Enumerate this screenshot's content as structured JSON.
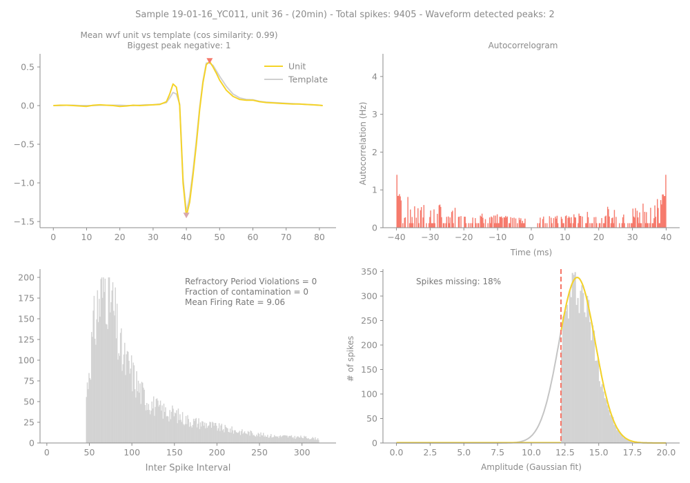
{
  "suptitle": "Sample 19-01-16_YC011, unit 36 - (20min) - Total spikes: 9405 - Waveform detected peaks: 2",
  "colors": {
    "unit": "#f5d327",
    "template": "#cfcfcf",
    "acg": "#f6796b",
    "hist": "#d3d3d3",
    "axis": "#8a8a8a",
    "peak_pos": "#f6796b",
    "peak_neg": "#d6a7ad",
    "cutoff": "#f6796b"
  },
  "chart_data": [
    {
      "id": "waveform",
      "type": "line",
      "title_line1": "Mean wvf unit vs template (cos similarity: 0.99)",
      "title_line2": "Biggest peak negative: 1",
      "xlabel": "",
      "ylabel": "",
      "xlim": [
        -4,
        85
      ],
      "ylim": [
        -1.58,
        0.67
      ],
      "xticks": [
        0,
        10,
        20,
        30,
        40,
        50,
        60,
        70,
        80
      ],
      "yticks": [
        -1.5,
        -1.0,
        -0.5,
        0.0,
        0.5
      ],
      "ytick_labels": [
        "−1.5",
        "−1.0",
        "−0.5",
        "0.0",
        "0.5"
      ],
      "legend": [
        "Unit",
        "Template"
      ],
      "legend_position": "top-right",
      "series": [
        {
          "name": "Unit",
          "x": [
            0,
            2,
            4,
            6,
            8,
            10,
            12,
            14,
            16,
            18,
            20,
            22,
            24,
            26,
            28,
            30,
            32,
            34,
            35,
            36,
            37,
            38,
            39,
            40,
            41,
            42,
            43,
            44,
            45,
            46,
            47,
            48,
            49,
            50,
            52,
            54,
            56,
            58,
            60,
            62,
            64,
            66,
            68,
            70,
            72,
            74,
            76,
            78,
            80,
            81
          ],
          "y": [
            0,
            0.005,
            0.005,
            0.0,
            -0.005,
            -0.01,
            0.005,
            0.01,
            0.005,
            0.0,
            -0.01,
            -0.005,
            0.005,
            0.0,
            0.005,
            0.01,
            0.015,
            0.05,
            0.15,
            0.28,
            0.24,
            0.0,
            -1.0,
            -1.43,
            -1.25,
            -0.9,
            -0.5,
            -0.05,
            0.3,
            0.53,
            0.57,
            0.5,
            0.42,
            0.33,
            0.2,
            0.12,
            0.08,
            0.07,
            0.07,
            0.05,
            0.04,
            0.035,
            0.03,
            0.025,
            0.02,
            0.02,
            0.015,
            0.01,
            0.005,
            0.0
          ]
        },
        {
          "name": "Template",
          "x": [
            0,
            2,
            4,
            6,
            8,
            10,
            12,
            14,
            16,
            18,
            20,
            22,
            24,
            26,
            28,
            30,
            32,
            34,
            35,
            36,
            37,
            38,
            39,
            40,
            41,
            42,
            43,
            44,
            45,
            46,
            47,
            48,
            49,
            50,
            52,
            54,
            56,
            58,
            60,
            62,
            64,
            66,
            68,
            70,
            72,
            74,
            76,
            78,
            80,
            81
          ],
          "y": [
            0,
            0.0,
            0.005,
            0.005,
            0.0,
            0.0,
            0.0,
            0.005,
            0.005,
            0.005,
            0.005,
            0.0,
            0.0,
            0.005,
            0.01,
            0.01,
            0.02,
            0.04,
            0.1,
            0.17,
            0.15,
            0.02,
            -0.95,
            -1.38,
            -1.18,
            -0.85,
            -0.45,
            -0.02,
            0.32,
            0.55,
            0.55,
            0.52,
            0.45,
            0.38,
            0.25,
            0.15,
            0.1,
            0.08,
            0.075,
            0.055,
            0.045,
            0.04,
            0.035,
            0.03,
            0.025,
            0.02,
            0.015,
            0.01,
            0.005,
            0.0
          ]
        }
      ],
      "peaks": [
        {
          "x": 47,
          "y": 0.57,
          "dir": "down"
        },
        {
          "x": 40,
          "y": -1.43,
          "dir": "down"
        }
      ]
    },
    {
      "id": "acg",
      "type": "bar",
      "title": "Autocorrelogram",
      "xlabel": "Time (ms)",
      "ylabel": "Autocorrelation (Hz)",
      "xlim": [
        -44,
        44
      ],
      "ylim": [
        0,
        4.6
      ],
      "xticks": [
        -40,
        -30,
        -20,
        -10,
        0,
        10,
        20,
        30,
        40
      ],
      "xtick_labels": [
        "−40",
        "−30",
        "−20",
        "−10",
        "0",
        "10",
        "20",
        "30",
        "40"
      ],
      "yticks": [
        0,
        1,
        2,
        3,
        4
      ],
      "bin_width": 0.25,
      "bins_from": -40,
      "bins_to": 40,
      "edge_peak_value": 1.4,
      "gap_range": [
        -1.5,
        1.5
      ],
      "envelope_edge": 0.75,
      "envelope_center": 0.25
    },
    {
      "id": "isi",
      "type": "bar",
      "title": "",
      "xlabel": "Inter Spike Interval",
      "ylabel": "",
      "xlim": [
        -8,
        340
      ],
      "ylim": [
        0,
        210
      ],
      "xticks": [
        0,
        50,
        100,
        150,
        200,
        250,
        300
      ],
      "yticks": [
        0,
        25,
        50,
        75,
        100,
        125,
        150,
        175,
        200
      ],
      "bin_width": 1,
      "annotations": [
        "Refractory Period Violations = 0",
        "Fraction of contamination = 0",
        "Mean Firing Rate = 9.06"
      ],
      "hist_knots": [
        [
          45,
          0
        ],
        [
          46,
          52
        ],
        [
          50,
          95
        ],
        [
          55,
          135
        ],
        [
          60,
          165
        ],
        [
          65,
          180
        ],
        [
          70,
          200
        ],
        [
          75,
          175
        ],
        [
          80,
          150
        ],
        [
          85,
          115
        ],
        [
          90,
          100
        ],
        [
          100,
          85
        ],
        [
          110,
          62
        ],
        [
          120,
          50
        ],
        [
          130,
          42
        ],
        [
          140,
          38
        ],
        [
          150,
          35
        ],
        [
          160,
          30
        ],
        [
          170,
          26
        ],
        [
          180,
          24
        ],
        [
          190,
          22
        ],
        [
          200,
          19
        ],
        [
          210,
          17
        ],
        [
          220,
          15
        ],
        [
          230,
          13
        ],
        [
          240,
          12
        ],
        [
          250,
          10
        ],
        [
          260,
          9
        ],
        [
          270,
          8
        ],
        [
          280,
          8
        ],
        [
          290,
          7
        ],
        [
          300,
          7
        ],
        [
          310,
          6
        ],
        [
          320,
          5
        ]
      ]
    },
    {
      "id": "amplitude",
      "type": "bar",
      "title": "",
      "xlabel": "Amplitude (Gaussian fit)",
      "ylabel": "# of spikes",
      "xlim": [
        -1,
        21
      ],
      "ylim": [
        0,
        355
      ],
      "xticks": [
        0.0,
        2.5,
        5.0,
        7.5,
        10.0,
        12.5,
        15.0,
        17.5,
        20.0
      ],
      "xtick_labels": [
        "0.0",
        "2.5",
        "5.0",
        "7.5",
        "10.0",
        "12.5",
        "15.0",
        "17.5",
        "20.0"
      ],
      "yticks": [
        0,
        50,
        100,
        150,
        200,
        250,
        300,
        350
      ],
      "annotation": "Spikes missing: 18%",
      "cutoff": 12.2,
      "gaussian": {
        "amplitude": 338,
        "mean": 13.4,
        "sigma": 1.35
      },
      "bin_width": 0.1
    }
  ]
}
